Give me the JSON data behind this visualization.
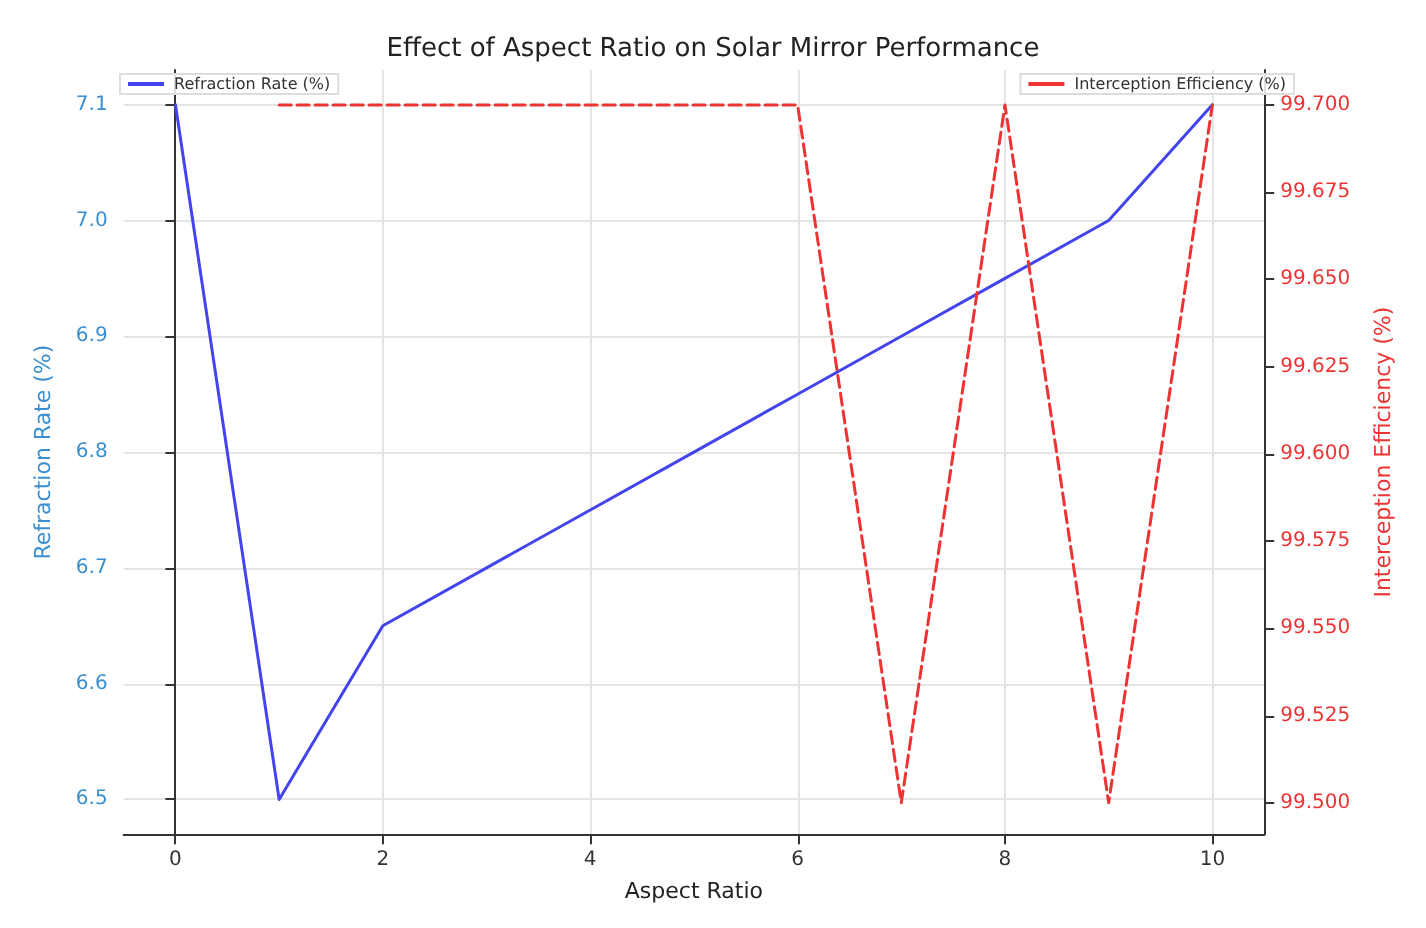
{
  "chart_data": {
    "type": "line",
    "title": "Effect of Aspect Ratio on Solar Mirror Performance",
    "xlabel": "Aspect Ratio",
    "ylabel": "Refraction Rate (%)",
    "y2label": "Interception Efficiency (%)",
    "x": [
      0,
      1,
      2,
      3,
      4,
      5,
      6,
      7,
      8,
      9,
      10
    ],
    "series": [
      {
        "name": "Refraction Rate (%)",
        "color": "#4444ee",
        "line_style": "solid",
        "values": [
          7.1,
          6.5,
          6.65,
          6.7,
          6.75,
          6.8,
          6.85,
          6.9,
          6.95,
          7.0,
          7.1
        ]
      },
      {
        "name": "Interception Efficiency (%)",
        "color": "#ee3333",
        "line_style": "dashed",
        "axis": "y2",
        "values": [
          null,
          99.7,
          99.7,
          99.7,
          99.7,
          99.7,
          99.7,
          99.5,
          99.7,
          99.5,
          99.7
        ]
      }
    ],
    "xlim": [
      -0.5,
      10.5
    ],
    "xticks": [
      0,
      2,
      4,
      6,
      8,
      10
    ],
    "ylim": [
      6.47,
      7.13
    ],
    "yticks": [
      6.5,
      6.6,
      6.7,
      6.8,
      6.9,
      {
        "value": 7,
        "label": "7.0"
      },
      7.1
    ],
    "y2lim": [
      99.491,
      99.71
    ],
    "y2ticks": [
      {
        "value": 99.5,
        "label": "99.500"
      },
      99.525,
      {
        "value": 99.55,
        "label": "99.550"
      },
      99.575,
      {
        "value": 99.6,
        "label": "99.600"
      },
      99.625,
      {
        "value": 99.65,
        "label": "99.650"
      },
      99.675,
      {
        "value": 99.7,
        "label": "99.700"
      }
    ],
    "grid": true,
    "legend": "top",
    "marker": "none"
  }
}
